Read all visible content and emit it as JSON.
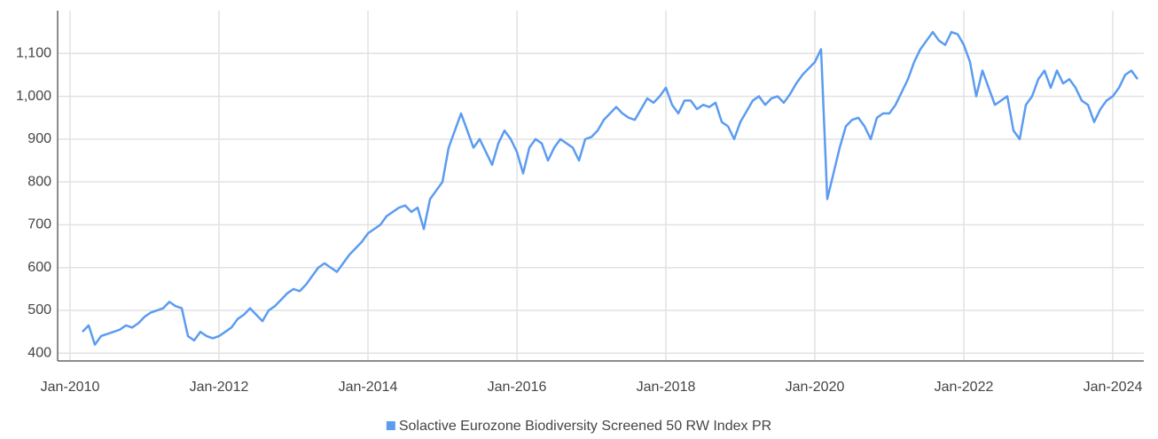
{
  "chart_data": {
    "type": "line",
    "x": [
      "2010-03",
      "2010-04",
      "2010-05",
      "2010-06",
      "2010-07",
      "2010-08",
      "2010-09",
      "2010-10",
      "2010-11",
      "2010-12",
      "2011-01",
      "2011-02",
      "2011-03",
      "2011-04",
      "2011-05",
      "2011-06",
      "2011-07",
      "2011-08",
      "2011-09",
      "2011-10",
      "2011-11",
      "2011-12",
      "2012-01",
      "2012-02",
      "2012-03",
      "2012-04",
      "2012-05",
      "2012-06",
      "2012-07",
      "2012-08",
      "2012-09",
      "2012-10",
      "2012-11",
      "2012-12",
      "2013-01",
      "2013-02",
      "2013-03",
      "2013-04",
      "2013-05",
      "2013-06",
      "2013-07",
      "2013-08",
      "2013-09",
      "2013-10",
      "2013-11",
      "2013-12",
      "2014-01",
      "2014-02",
      "2014-03",
      "2014-04",
      "2014-05",
      "2014-06",
      "2014-07",
      "2014-08",
      "2014-09",
      "2014-10",
      "2014-11",
      "2014-12",
      "2015-01",
      "2015-02",
      "2015-03",
      "2015-04",
      "2015-05",
      "2015-06",
      "2015-07",
      "2015-08",
      "2015-09",
      "2015-10",
      "2015-11",
      "2015-12",
      "2016-01",
      "2016-02",
      "2016-03",
      "2016-04",
      "2016-05",
      "2016-06",
      "2016-07",
      "2016-08",
      "2016-09",
      "2016-10",
      "2016-11",
      "2016-12",
      "2017-01",
      "2017-02",
      "2017-03",
      "2017-04",
      "2017-05",
      "2017-06",
      "2017-07",
      "2017-08",
      "2017-09",
      "2017-10",
      "2017-11",
      "2017-12",
      "2018-01",
      "2018-02",
      "2018-03",
      "2018-04",
      "2018-05",
      "2018-06",
      "2018-07",
      "2018-08",
      "2018-09",
      "2018-10",
      "2018-11",
      "2018-12",
      "2019-01",
      "2019-02",
      "2019-03",
      "2019-04",
      "2019-05",
      "2019-06",
      "2019-07",
      "2019-08",
      "2019-09",
      "2019-10",
      "2019-11",
      "2019-12",
      "2020-01",
      "2020-02",
      "2020-03",
      "2020-04",
      "2020-05",
      "2020-06",
      "2020-07",
      "2020-08",
      "2020-09",
      "2020-10",
      "2020-11",
      "2020-12",
      "2021-01",
      "2021-02",
      "2021-03",
      "2021-04",
      "2021-05",
      "2021-06",
      "2021-07",
      "2021-08",
      "2021-09",
      "2021-10",
      "2021-11",
      "2021-12",
      "2022-01",
      "2022-02",
      "2022-03",
      "2022-04",
      "2022-05",
      "2022-06",
      "2022-07",
      "2022-08",
      "2022-09",
      "2022-10",
      "2022-11",
      "2022-12",
      "2023-01",
      "2023-02",
      "2023-03",
      "2023-04",
      "2023-05",
      "2023-06",
      "2023-07",
      "2023-08",
      "2023-09",
      "2023-10",
      "2023-11",
      "2023-12",
      "2024-01",
      "2024-02",
      "2024-03",
      "2024-04",
      "2024-05"
    ],
    "series": [
      {
        "name": "Solactive Eurozone Biodiversity Screened 50 RW Index PR",
        "color": "#5b9cf0",
        "values": [
          450,
          465,
          420,
          440,
          445,
          450,
          455,
          465,
          460,
          470,
          485,
          495,
          500,
          505,
          520,
          510,
          505,
          440,
          430,
          450,
          440,
          435,
          440,
          450,
          460,
          480,
          490,
          505,
          490,
          475,
          500,
          510,
          525,
          540,
          550,
          545,
          560,
          580,
          600,
          610,
          600,
          590,
          610,
          630,
          645,
          660,
          680,
          690,
          700,
          720,
          730,
          740,
          745,
          730,
          740,
          690,
          760,
          780,
          800,
          880,
          920,
          960,
          920,
          880,
          900,
          870,
          840,
          890,
          920,
          900,
          870,
          820,
          880,
          900,
          890,
          850,
          880,
          900,
          890,
          880,
          850,
          900,
          905,
          920,
          945,
          960,
          975,
          960,
          950,
          945,
          970,
          995,
          985,
          1000,
          1020,
          980,
          960,
          990,
          990,
          970,
          980,
          975,
          985,
          940,
          930,
          900,
          940,
          965,
          990,
          1000,
          980,
          995,
          1000,
          985,
          1005,
          1030,
          1050,
          1065,
          1080,
          1110,
          760,
          820,
          880,
          930,
          945,
          950,
          930,
          900,
          950,
          960,
          960,
          980,
          1010,
          1040,
          1080,
          1110,
          1130,
          1150,
          1130,
          1120,
          1150,
          1145,
          1120,
          1080,
          1000,
          1060,
          1020,
          980,
          990,
          1000,
          920,
          900,
          980,
          1000,
          1040,
          1060,
          1020,
          1060,
          1030,
          1040,
          1020,
          990,
          980,
          940,
          970,
          990,
          1000,
          1020,
          1050,
          1060,
          1040
        ]
      }
    ],
    "xlim": [
      "2009-11",
      "2024-06"
    ],
    "xticks": [
      {
        "value": "2010-01",
        "label": "Jan-2010"
      },
      {
        "value": "2012-01",
        "label": "Jan-2012"
      },
      {
        "value": "2014-01",
        "label": "Jan-2014"
      },
      {
        "value": "2016-01",
        "label": "Jan-2016"
      },
      {
        "value": "2018-01",
        "label": "Jan-2018"
      },
      {
        "value": "2020-01",
        "label": "Jan-2020"
      },
      {
        "value": "2022-01",
        "label": "Jan-2022"
      },
      {
        "value": "2024-01",
        "label": "Jan-2024"
      }
    ],
    "ylim": [
      382,
      1200
    ],
    "yticks": [
      400,
      500,
      600,
      700,
      800,
      900,
      {
        "value": 1000,
        "label": "1,000"
      },
      {
        "value": 1100,
        "label": "1,100"
      }
    ],
    "grid": true,
    "legend": "bottom"
  }
}
